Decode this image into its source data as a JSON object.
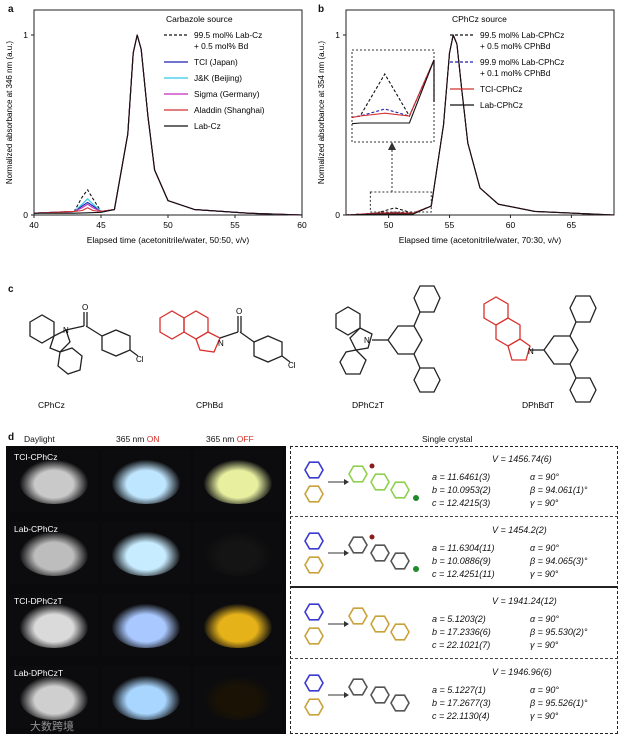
{
  "panels": {
    "a": "a",
    "b": "b",
    "c": "c",
    "d": "d"
  },
  "chart_data": [
    {
      "type": "line",
      "panel": "a",
      "title": "Carbazole source",
      "xlabel": "Elapsed time (acetonitrile/water, 50:50, v/v)",
      "ylabel": "Normalized absorbance at 346 nm (a.u.)",
      "xlim": [
        40,
        60
      ],
      "ylim": [
        0,
        1
      ],
      "xticks": [
        "40",
        "45",
        "50",
        "55",
        "60"
      ],
      "yticks": [
        "0",
        "1"
      ],
      "legend_position": "top-right",
      "series": [
        {
          "name": "99.5 mol% Lab-Cz\n+ 0.5 mol% Bd",
          "color": "#111111",
          "dash": true,
          "x": [
            40,
            43,
            43.6,
            44.0,
            44.4,
            45,
            46,
            47,
            47.4,
            47.7,
            48,
            48.5,
            49,
            50,
            52,
            56,
            60
          ],
          "y": [
            0.01,
            0.02,
            0.1,
            0.14,
            0.09,
            0.02,
            0.03,
            0.45,
            0.9,
            1.0,
            0.92,
            0.55,
            0.25,
            0.08,
            0.03,
            0.01,
            0.0
          ]
        },
        {
          "name": "TCI (Japan)",
          "color": "#1a22b0",
          "dash": false,
          "x": [
            40,
            43,
            43.6,
            44.0,
            44.4,
            45,
            46,
            47,
            47.4,
            47.7,
            48,
            48.5,
            49,
            50,
            52,
            56,
            60
          ],
          "y": [
            0.01,
            0.02,
            0.05,
            0.07,
            0.05,
            0.02,
            0.03,
            0.45,
            0.9,
            1.0,
            0.92,
            0.55,
            0.25,
            0.08,
            0.03,
            0.01,
            0.0
          ]
        },
        {
          "name": "J&K (Beijing)",
          "color": "#35c8e8",
          "dash": false,
          "x": [
            40,
            43,
            43.6,
            44.0,
            44.4,
            45,
            46,
            47,
            47.4,
            47.7,
            48,
            48.5,
            49,
            50,
            52,
            56,
            60
          ],
          "y": [
            0.01,
            0.02,
            0.06,
            0.09,
            0.06,
            0.02,
            0.03,
            0.45,
            0.9,
            1.0,
            0.92,
            0.55,
            0.25,
            0.08,
            0.03,
            0.01,
            0.0
          ]
        },
        {
          "name": "Sigma (Germany)",
          "color": "#c02ec0",
          "dash": false,
          "x": [
            40,
            43,
            43.6,
            44.0,
            44.4,
            45,
            46,
            47,
            47.4,
            47.7,
            48,
            48.5,
            49,
            50,
            52,
            56,
            60
          ],
          "y": [
            0.01,
            0.02,
            0.04,
            0.06,
            0.04,
            0.02,
            0.03,
            0.45,
            0.9,
            1.0,
            0.92,
            0.55,
            0.25,
            0.08,
            0.03,
            0.01,
            0.0
          ]
        },
        {
          "name": "Aladdin (Shanghai)",
          "color": "#d0322f",
          "dash": false,
          "x": [
            40,
            43,
            43.6,
            44.0,
            44.4,
            45,
            46,
            47,
            47.4,
            47.7,
            48,
            48.5,
            49,
            50,
            52,
            56,
            60
          ],
          "y": [
            0.01,
            0.02,
            0.025,
            0.04,
            0.025,
            0.02,
            0.03,
            0.45,
            0.9,
            1.0,
            0.92,
            0.55,
            0.25,
            0.08,
            0.03,
            0.01,
            0.0
          ]
        },
        {
          "name": "Lab-Cz",
          "color": "#111111",
          "dash": false,
          "x": [
            40,
            43,
            44,
            45,
            46,
            47,
            47.4,
            47.7,
            48,
            48.5,
            49,
            50,
            52,
            56,
            60
          ],
          "y": [
            0.01,
            0.01,
            0.012,
            0.015,
            0.03,
            0.45,
            0.9,
            1.0,
            0.92,
            0.55,
            0.25,
            0.08,
            0.03,
            0.01,
            0.0
          ]
        }
      ]
    },
    {
      "type": "line",
      "panel": "b",
      "title": "CPhCz source",
      "xlabel": "Elapsed time (acetonitrile/water, 70:30, v/v)",
      "ylabel": "Normalized absorbance at 354 nm (a.u.)",
      "xlim": [
        46.5,
        68.5
      ],
      "ylim": [
        0,
        1
      ],
      "xticks": [
        "50",
        "55",
        "60",
        "65"
      ],
      "yticks": [
        "0",
        "1"
      ],
      "legend_position": "top-right",
      "series": [
        {
          "name": "99.5 mol% Lab-CPhCz\n+ 0.5 mol% CPhBd",
          "color": "#111111",
          "dash": true,
          "x": [
            46.5,
            49,
            50.5,
            52,
            53.5,
            54.5,
            55,
            55.3,
            55.6,
            56,
            56.5,
            57.5,
            59,
            62,
            68.5
          ],
          "y": [
            0.0,
            0.01,
            0.04,
            0.01,
            0.05,
            0.5,
            0.9,
            1.0,
            0.95,
            0.7,
            0.4,
            0.15,
            0.06,
            0.02,
            0.0
          ]
        },
        {
          "name": "99.9 mol% Lab-CPhCz\n+ 0.1 mol% CPhBd",
          "color": "#1a22b0",
          "dash": true,
          "x": [
            46.5,
            49,
            50.5,
            52,
            53.5,
            54.5,
            55,
            55.3,
            55.6,
            56,
            56.5,
            57.5,
            59,
            62,
            68.5
          ],
          "y": [
            0.0,
            0.01,
            0.015,
            0.01,
            0.05,
            0.5,
            0.9,
            1.0,
            0.95,
            0.7,
            0.4,
            0.15,
            0.06,
            0.02,
            0.0
          ]
        },
        {
          "name": "TCI-CPhCz",
          "color": "#d0322f",
          "dash": false,
          "x": [
            46.5,
            49,
            50.5,
            52,
            53.5,
            54.5,
            55,
            55.3,
            55.6,
            56,
            56.5,
            57.5,
            59,
            62,
            68.5
          ],
          "y": [
            0.0,
            0.01,
            0.012,
            0.01,
            0.05,
            0.5,
            0.9,
            1.0,
            0.95,
            0.7,
            0.4,
            0.15,
            0.06,
            0.02,
            0.0
          ]
        },
        {
          "name": "Lab-CPhCz",
          "color": "#111111",
          "dash": false,
          "x": [
            46.5,
            49,
            50.5,
            52,
            53.5,
            54.5,
            55,
            55.3,
            55.6,
            56,
            56.5,
            57.5,
            59,
            62,
            68.5
          ],
          "y": [
            0.0,
            0.005,
            0.005,
            0.005,
            0.05,
            0.5,
            0.9,
            1.0,
            0.95,
            0.7,
            0.4,
            0.15,
            0.06,
            0.02,
            0.0
          ]
        }
      ]
    }
  ],
  "structures": {
    "labels": [
      "CPhCz",
      "CPhBd",
      "DPhCzT",
      "DPhBdT"
    ],
    "atoms": {
      "N": "N",
      "O": "O",
      "Cl": "Cl"
    }
  },
  "photo_grid": {
    "col_headers": {
      "daylight": "Daylight",
      "on_prefix": "365 nm ",
      "on": "ON",
      "off_prefix": "365 nm ",
      "off": "OFF"
    },
    "rows": [
      {
        "label": "TCI-CPhCz",
        "day": "#c9c9c9",
        "uv_on": "#bfe6ff",
        "uv_off": "#e8f0a0"
      },
      {
        "label": "Lab-CPhCz",
        "day": "#bdbdbd",
        "uv_on": "#c7ecff",
        "uv_off": "#141414"
      },
      {
        "label": "TCI-DPhCzT",
        "day": "#dadada",
        "uv_on": "#a9c8ff",
        "uv_off": "#e5b21a"
      },
      {
        "label": "Lab-DPhCzT",
        "day": "#cfcfcf",
        "uv_on": "#a8d6ff",
        "uv_off": "#1a1305"
      }
    ]
  },
  "crystals": {
    "header": "Single crystal",
    "rows": [
      {
        "V": "V = 1456.74(6)",
        "a": "a = 11.6461(3)",
        "b": "b = 10.0953(2)",
        "c": "c = 12.4215(3)",
        "alpha": "α = 90°",
        "beta": "β = 94.061(1)°",
        "gamma": "γ = 90°",
        "color": "#8fd14f"
      },
      {
        "V": "V = 1454.2(2)",
        "a": "a = 11.6304(11)",
        "b": "b = 10.0886(9)",
        "c": "c = 12.4251(11)",
        "alpha": "α = 90°",
        "beta": "β = 94.065(3)°",
        "gamma": "γ = 90°",
        "color": "#555555"
      },
      {
        "V": "V = 1941.24(12)",
        "a": "a = 5.1203(2)",
        "b": "b = 17.2336(6)",
        "c": "c = 22.1021(7)",
        "alpha": "α = 90°",
        "beta": "β = 95.530(2)°",
        "gamma": "γ = 90°",
        "color": "#c9a23a"
      },
      {
        "V": "V = 1946.96(6)",
        "a": "a = 5.1227(1)",
        "b": "b = 17.2677(3)",
        "c": "c = 22.1130(4)",
        "alpha": "α = 90°",
        "beta": "β = 95.526(1)°",
        "gamma": "γ = 90°",
        "color": "#555555"
      }
    ]
  },
  "watermark": "大数跨境"
}
